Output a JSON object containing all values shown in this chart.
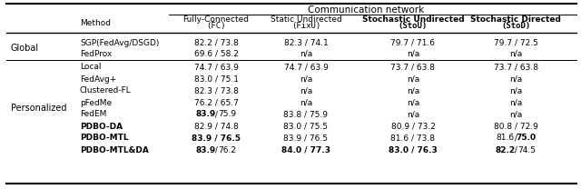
{
  "figsize": [
    6.4,
    2.08
  ],
  "dpi": 100,
  "comm_network_label": "Communication network",
  "col0_header": "Method",
  "col_headers": [
    {
      "line1": "Fully-Connected",
      "line2": "(FC)",
      "bold": false
    },
    {
      "line1": "Static Undirected",
      "line2": "(FixU)",
      "bold": false
    },
    {
      "line1": "Stochastic Undirected",
      "line2": "(StoU)",
      "bold": true
    },
    {
      "line1": "Stochastic Directed",
      "line2": "(StoD)",
      "bold": true
    }
  ],
  "groups": [
    {
      "label": "Global",
      "rows": [
        {
          "method": "SGP(FedAvg/DSGD)",
          "method_bold": false,
          "cols": [
            {
              "text": "82.2 / 73.8",
              "b1": false,
              "b2": false
            },
            {
              "text": "82.3 / 74.1",
              "b1": false,
              "b2": false
            },
            {
              "text": "79.7 / 71.6",
              "b1": false,
              "b2": false
            },
            {
              "text": "79.7 / 72.5",
              "b1": false,
              "b2": false
            }
          ]
        },
        {
          "method": "FedProx",
          "method_bold": false,
          "cols": [
            {
              "text": "69.6 / 58.2",
              "b1": false,
              "b2": false
            },
            {
              "text": "n/a",
              "b1": false,
              "b2": false
            },
            {
              "text": "n/a",
              "b1": false,
              "b2": false
            },
            {
              "text": "n/a",
              "b1": false,
              "b2": false
            }
          ]
        }
      ]
    },
    {
      "label": "Personalized",
      "rows": [
        {
          "method": "Local",
          "method_bold": false,
          "cols": [
            {
              "text": "74.7 / 63.9",
              "b1": false,
              "b2": false
            },
            {
              "text": "74.7 / 63.9",
              "b1": false,
              "b2": false
            },
            {
              "text": "73.7 / 63.8",
              "b1": false,
              "b2": false
            },
            {
              "text": "73.7 / 63.8",
              "b1": false,
              "b2": false
            }
          ]
        },
        {
          "method": "FedAvg+",
          "method_bold": false,
          "cols": [
            {
              "text": "83.0 / 75.1",
              "b1": false,
              "b2": false
            },
            {
              "text": "n/a",
              "b1": false,
              "b2": false
            },
            {
              "text": "n/a",
              "b1": false,
              "b2": false
            },
            {
              "text": "n/a",
              "b1": false,
              "b2": false
            }
          ]
        },
        {
          "method": "Clustered-FL",
          "method_bold": false,
          "cols": [
            {
              "text": "82.3 / 73.8",
              "b1": false,
              "b2": false
            },
            {
              "text": "n/a",
              "b1": false,
              "b2": false
            },
            {
              "text": "n/a",
              "b1": false,
              "b2": false
            },
            {
              "text": "n/a",
              "b1": false,
              "b2": false
            }
          ]
        },
        {
          "method": "pFedMe",
          "method_bold": false,
          "cols": [
            {
              "text": "76.2 / 65.7",
              "b1": false,
              "b2": false
            },
            {
              "text": "n/a",
              "b1": false,
              "b2": false
            },
            {
              "text": "n/a",
              "b1": false,
              "b2": false
            },
            {
              "text": "n/a",
              "b1": false,
              "b2": false
            }
          ]
        },
        {
          "method": "FedEM",
          "method_bold": false,
          "cols": [
            {
              "text": "83.9 / 75.9",
              "b1": true,
              "b2": false
            },
            {
              "text": "83.8 / 75.9",
              "b1": false,
              "b2": false
            },
            {
              "text": "n/a",
              "b1": false,
              "b2": false
            },
            {
              "text": "n/a",
              "b1": false,
              "b2": false
            }
          ]
        },
        {
          "method": "PDBO-DA",
          "method_bold": true,
          "cols": [
            {
              "text": "82.9 / 74.8",
              "b1": false,
              "b2": false
            },
            {
              "text": "83.0 / 75.5",
              "b1": false,
              "b2": false
            },
            {
              "text": "80.9 / 73.2",
              "b1": false,
              "b2": false
            },
            {
              "text": "80.8 / 72.9",
              "b1": false,
              "b2": false
            }
          ]
        },
        {
          "method": "PDBO-MTL",
          "method_bold": true,
          "cols": [
            {
              "text": "83.9 / 76.5",
              "b1": true,
              "b2": true
            },
            {
              "text": "83.9 / 76.5",
              "b1": false,
              "b2": false
            },
            {
              "text": "81.6 / 73.8",
              "b1": false,
              "b2": false
            },
            {
              "text": "81.6 / 75.0",
              "b1": false,
              "b2": true
            }
          ]
        },
        {
          "method": "PDBO-MTL&DA",
          "method_bold": true,
          "cols": [
            {
              "text": "83.9 / 76.2",
              "b1": true,
              "b2": false
            },
            {
              "text": "84.0 / 77.3",
              "b1": true,
              "b2": true
            },
            {
              "text": "83.0 / 76.3",
              "b1": true,
              "b2": true
            },
            {
              "text": "82.2 / 74.5",
              "b1": true,
              "b2": false
            }
          ]
        }
      ]
    }
  ],
  "font_size_data": 6.5,
  "font_size_header": 6.5,
  "font_size_comm": 7.5,
  "font_size_method_col": 7.0,
  "font_size_group": 7.0
}
